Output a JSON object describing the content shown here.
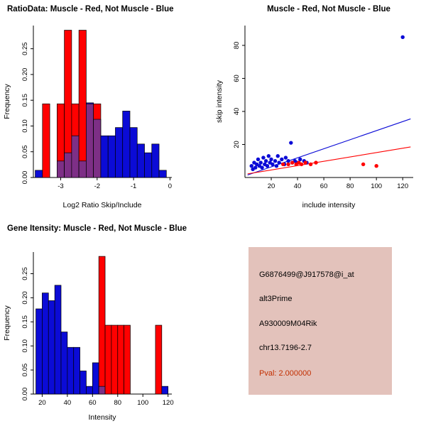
{
  "colors": {
    "muscle_red": "#ff0000",
    "not_muscle_blue": "#0b0bd6",
    "overlap_purple": "#7d2f86",
    "axis_black": "#000000",
    "info_box_bg": "#e3c2bb",
    "pval_red": "#c22e00"
  },
  "info_panel": {
    "lines": [
      "G6876499@J917578@i_at",
      "alt3Prime",
      "A930009M04Rik",
      "chr13.7196-2.7"
    ],
    "pval": "Pval: 2.000000"
  },
  "chart_data": [
    {
      "id": "ratio_histogram",
      "type": "bar",
      "title": "RatioData: Muscle - Red, Not Muscle - Blue",
      "xlabel": "Log2 Ratio Skip/Include",
      "ylabel": "Frequency",
      "legend": "Muscle = red bars, Not Muscle = blue bars, overlap = purple",
      "xlim": [
        -3.75,
        0.05
      ],
      "ylim": [
        0,
        0.295
      ],
      "x_ticks": {
        "values": [
          -3,
          -2,
          -1,
          0
        ],
        "labels": [
          "-3",
          "-2",
          "-1",
          "0"
        ]
      },
      "y_ticks": {
        "values": [
          0,
          0.05,
          0.1,
          0.15,
          0.2,
          0.25
        ],
        "labels": [
          "0.00",
          "0.05",
          "0.10",
          "0.15",
          "0.20",
          "0.25"
        ]
      },
      "bin_edges": [
        -3.7,
        -3.5,
        -3.3,
        -3.1,
        -2.9,
        -2.7,
        -2.5,
        -2.3,
        -2.1,
        -1.9,
        -1.7,
        -1.5,
        -1.3,
        -1.1,
        -0.9,
        -0.7,
        -0.5,
        -0.3,
        -0.1
      ],
      "series": [
        {
          "name": "Not Muscle",
          "color_key": "not_muscle_blue",
          "values": [
            0.014,
            0,
            0,
            0.032,
            0.048,
            0.081,
            0.032,
            0.145,
            0.113,
            0.081,
            0.081,
            0.097,
            0.129,
            0.097,
            0.065,
            0.048,
            0.065,
            0.014
          ]
        },
        {
          "name": "Muscle",
          "color_key": "muscle_red",
          "values": [
            0,
            0.143,
            0,
            0.143,
            0.286,
            0.143,
            0.286,
            0.143,
            0.143,
            0,
            0,
            0,
            0,
            0,
            0,
            0,
            0,
            0
          ]
        }
      ]
    },
    {
      "id": "intensity_scatter",
      "type": "scatter",
      "title": "Muscle - Red, Not Muscle - Blue",
      "xlabel": "include intensity",
      "ylabel": "skip intensity",
      "legend": "Muscle = red points/line, Not Muscle = blue points/line",
      "xlim": [
        0,
        128
      ],
      "ylim": [
        0,
        92
      ],
      "x_ticks": {
        "values": [
          20,
          40,
          60,
          80,
          100,
          120
        ],
        "labels": [
          "20",
          "40",
          "60",
          "80",
          "100",
          "120"
        ]
      },
      "y_ticks": {
        "values": [
          20,
          40,
          60,
          80
        ],
        "labels": [
          "20",
          "40",
          "60",
          "80"
        ]
      },
      "series": [
        {
          "name": "Not Muscle",
          "color_key": "not_muscle_blue",
          "points": [
            [
              5,
              7
            ],
            [
              6,
              5
            ],
            [
              7,
              9
            ],
            [
              8,
              6
            ],
            [
              9,
              8
            ],
            [
              10,
              11
            ],
            [
              11,
              7
            ],
            [
              12,
              9
            ],
            [
              13,
              6
            ],
            [
              14,
              12
            ],
            [
              15,
              8
            ],
            [
              16,
              10
            ],
            [
              17,
              7
            ],
            [
              18,
              13
            ],
            [
              19,
              9
            ],
            [
              20,
              11
            ],
            [
              21,
              8
            ],
            [
              23,
              10
            ],
            [
              24,
              7
            ],
            [
              25,
              13
            ],
            [
              26,
              9
            ],
            [
              28,
              11
            ],
            [
              30,
              8
            ],
            [
              31,
              12
            ],
            [
              33,
              10
            ],
            [
              35,
              21
            ],
            [
              36,
              9
            ],
            [
              38,
              10
            ],
            [
              40,
              9
            ],
            [
              42,
              11
            ],
            [
              45,
              10
            ],
            [
              47,
              9
            ],
            [
              120,
              85
            ]
          ],
          "trend_line": {
            "x": [
              2,
              126
            ],
            "y": [
              1.5,
              35.5
            ]
          }
        },
        {
          "name": "Muscle",
          "color_key": "muscle_red",
          "points": [
            [
              29,
              8
            ],
            [
              33,
              8
            ],
            [
              36,
              9
            ],
            [
              39,
              8
            ],
            [
              41,
              9
            ],
            [
              43,
              8
            ],
            [
              46,
              9
            ],
            [
              50,
              8
            ],
            [
              54,
              9
            ],
            [
              90,
              8
            ],
            [
              100,
              7
            ]
          ],
          "trend_line": {
            "x": [
              2,
              126
            ],
            "y": [
              2.2,
              18.5
            ]
          }
        }
      ]
    },
    {
      "id": "gene_histogram",
      "type": "bar",
      "title": "Gene Itensity: Muscle - Red, Not Muscle - Blue",
      "xlabel": "Intensity",
      "ylabel": "Frequency",
      "legend": "Muscle = red bars, Not Muscle = blue bars",
      "xlim": [
        13,
        123
      ],
      "ylim": [
        0,
        0.295
      ],
      "x_ticks": {
        "values": [
          20,
          40,
          60,
          80,
          100,
          120
        ],
        "labels": [
          "20",
          "40",
          "60",
          "80",
          "100",
          "120"
        ]
      },
      "y_ticks": {
        "values": [
          0,
          0.05,
          0.1,
          0.15,
          0.2,
          0.25
        ],
        "labels": [
          "0.00",
          "0.05",
          "0.10",
          "0.15",
          "0.20",
          "0.25"
        ]
      },
      "bin_edges": [
        15,
        20,
        25,
        30,
        35,
        40,
        45,
        50,
        55,
        60,
        65,
        70,
        75,
        80,
        85,
        90,
        95,
        100,
        105,
        110,
        115,
        120
      ],
      "series": [
        {
          "name": "Not Muscle",
          "color_key": "not_muscle_blue",
          "values": [
            0.177,
            0.21,
            0.194,
            0.226,
            0.129,
            0.097,
            0.097,
            0.048,
            0.016,
            0.065,
            0.016,
            0,
            0,
            0,
            0,
            0,
            0,
            0,
            0,
            0,
            0.016
          ]
        },
        {
          "name": "Muscle",
          "color_key": "muscle_red",
          "values": [
            0,
            0,
            0,
            0,
            0,
            0,
            0,
            0,
            0,
            0,
            0.286,
            0.143,
            0.143,
            0.143,
            0.143,
            0,
            0,
            0,
            0,
            0.143,
            0
          ]
        }
      ]
    }
  ]
}
